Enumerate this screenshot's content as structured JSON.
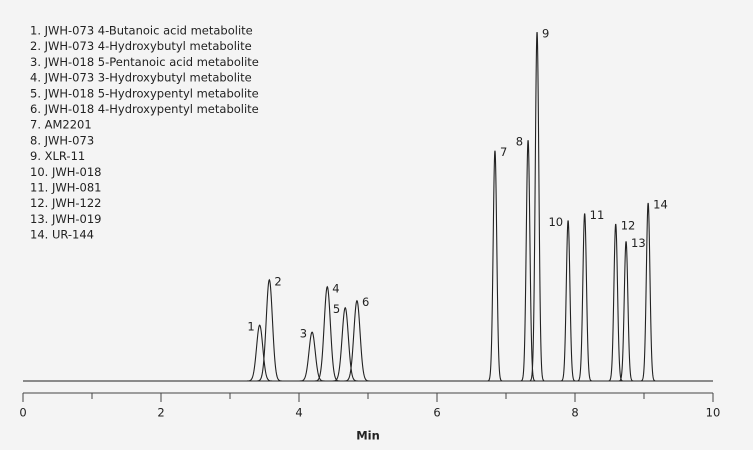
{
  "chart_data": {
    "type": "peaks",
    "x_label": "Min",
    "xlim": [
      0,
      10
    ],
    "xticks": [
      0,
      2,
      4,
      6,
      8,
      10
    ],
    "ylim": [
      0,
      100
    ],
    "color": "#222222",
    "peak_labels": [
      "1",
      "2",
      "3",
      "4",
      "5",
      "6",
      "7",
      "8",
      "9",
      "10",
      "11",
      "12",
      "13",
      "14"
    ],
    "x": [
      3.43,
      3.57,
      4.19,
      4.41,
      4.67,
      4.84,
      6.84,
      7.32,
      7.45,
      7.9,
      8.14,
      8.59,
      8.74,
      9.06
    ],
    "values": [
      16,
      29,
      14,
      27,
      21,
      23,
      66,
      69,
      100,
      46,
      48,
      45,
      40,
      51
    ],
    "legend": [
      "1. JWH-073 4-Butanoic acid metabolite",
      "2. JWH-073 4-Hydroxybutyl metabolite",
      "3. JWH-018 5-Pentanoic acid metabolite",
      "4. JWH-073 3-Hydroxybutyl metabolite",
      "5. JWH-018 5-Hydroxypentyl metabolite",
      "6. JWH-018 4-Hydroxypentyl metabolite",
      "7. AM2201",
      "8. JWH-073",
      "9. XLR-11",
      "10. JWH-018",
      "11. JWH-081",
      "12. JWH-122",
      "13. JWH-019",
      "14. UR-144"
    ]
  }
}
